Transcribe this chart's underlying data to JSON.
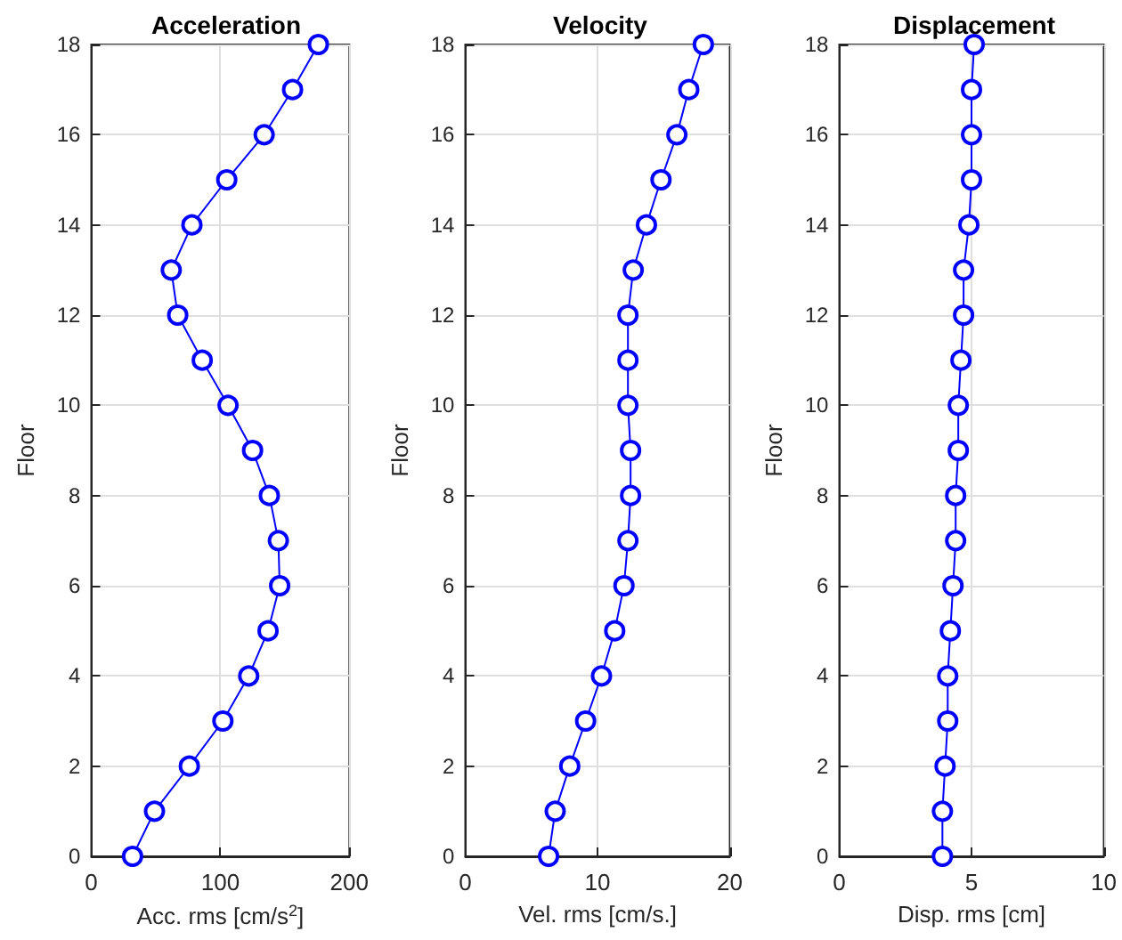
{
  "chart_data": [
    {
      "type": "line",
      "title": "Acceleration",
      "xlabel": "Acc. rms [cm/s$^{2}$]",
      "ylabel": "Floor",
      "series": [
        {
          "color": "#0000ff",
          "x": [
            32,
            49,
            76,
            102,
            122,
            137,
            146,
            145,
            138,
            125,
            106,
            86,
            67,
            62,
            78,
            105,
            134,
            156,
            176
          ],
          "values": [
            0,
            1,
            2,
            3,
            4,
            5,
            6,
            7,
            8,
            9,
            10,
            11,
            12,
            13,
            14,
            15,
            16,
            17,
            18
          ]
        }
      ],
      "xlim": [
        0,
        200
      ],
      "xticks": [
        0,
        100,
        200
      ],
      "ylim": [
        0,
        18
      ],
      "yticks": [
        0,
        2,
        4,
        6,
        8,
        10,
        12,
        14,
        16,
        18
      ],
      "grid": true,
      "marker": "circle",
      "line_style": "solid"
    },
    {
      "type": "line",
      "title": "Velocity",
      "xlabel": "Vel. rms [cm/s.]",
      "ylabel": "Floor",
      "series": [
        {
          "color": "#0000ff",
          "x": [
            6.3,
            6.8,
            7.9,
            9.1,
            10.3,
            11.3,
            12.0,
            12.3,
            12.5,
            12.5,
            12.3,
            12.3,
            12.3,
            12.7,
            13.7,
            14.8,
            16.0,
            16.9,
            18.0
          ],
          "values": [
            0,
            1,
            2,
            3,
            4,
            5,
            6,
            7,
            8,
            9,
            10,
            11,
            12,
            13,
            14,
            15,
            16,
            17,
            18
          ]
        }
      ],
      "xlim": [
        0,
        20
      ],
      "xticks": [
        0,
        10,
        20
      ],
      "ylim": [
        0,
        18
      ],
      "yticks": [
        0,
        2,
        4,
        6,
        8,
        10,
        12,
        14,
        16,
        18
      ],
      "grid": true,
      "marker": "circle",
      "line_style": "solid"
    },
    {
      "type": "line",
      "title": "Displacement",
      "xlabel": "Disp. rms [cm]",
      "ylabel": "Floor",
      "series": [
        {
          "color": "#0000ff",
          "x": [
            3.9,
            3.9,
            4.0,
            4.1,
            4.1,
            4.2,
            4.3,
            4.4,
            4.4,
            4.5,
            4.5,
            4.6,
            4.7,
            4.7,
            4.9,
            5.0,
            5.0,
            5.0,
            5.1
          ],
          "values": [
            0,
            1,
            2,
            3,
            4,
            5,
            6,
            7,
            8,
            9,
            10,
            11,
            12,
            13,
            14,
            15,
            16,
            17,
            18
          ]
        }
      ],
      "xlim": [
        0,
        10
      ],
      "xticks": [
        0,
        5,
        10
      ],
      "ylim": [
        0,
        18
      ],
      "yticks": [
        0,
        2,
        4,
        6,
        8,
        10,
        12,
        14,
        16,
        18
      ],
      "grid": true,
      "marker": "circle",
      "line_style": "solid"
    }
  ]
}
